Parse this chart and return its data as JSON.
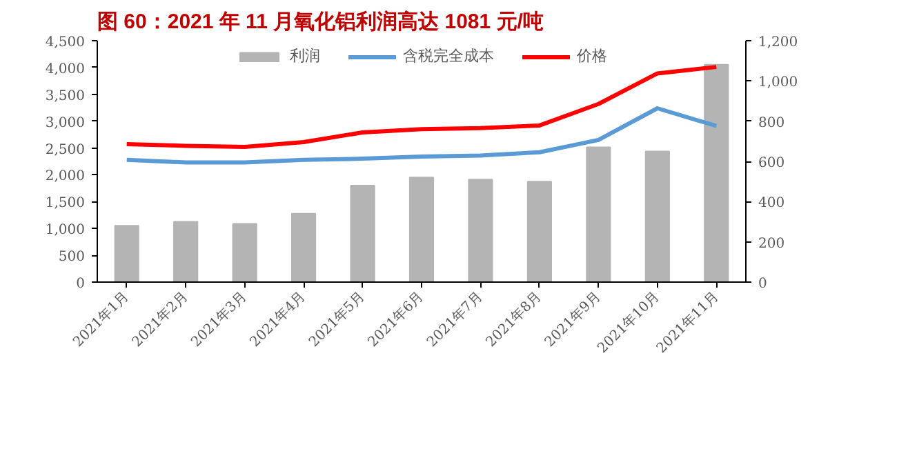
{
  "chart_data": {
    "type": "bar",
    "title": "图 60：2021 年 11 月氧化铝利润高达 1081 元/吨",
    "categories": [
      "2021年1月",
      "2021年2月",
      "2021年3月",
      "2021年4月",
      "2021年5月",
      "2021年6月",
      "2021年7月",
      "2021年8月",
      "2021年9月",
      "2021年10月",
      "2021年11月"
    ],
    "series": [
      {
        "name": "利润",
        "axis": "y2",
        "color": "#b4b4b4",
        "values": [
          280,
          300,
          290,
          340,
          480,
          520,
          510,
          500,
          670,
          650,
          1081
        ]
      },
      {
        "name": "含税完全成本",
        "type": "line",
        "color": "#5b9bd5",
        "values": [
          2280,
          2230,
          2230,
          2280,
          2300,
          2340,
          2360,
          2420,
          2650,
          3240,
          2910
        ]
      },
      {
        "name": "价格",
        "type": "line",
        "color": "#ff0000",
        "values": [
          2570,
          2540,
          2520,
          2610,
          2790,
          2850,
          2870,
          2920,
          3320,
          3890,
          4010
        ]
      }
    ],
    "ylim": [
      0,
      4500
    ],
    "yticks": [
      0,
      500,
      {
        "value": 1000,
        "label": "1,000"
      },
      {
        "value": 1500,
        "label": "1,500"
      },
      {
        "value": 2000,
        "label": "2,000"
      },
      {
        "value": 2500,
        "label": "2,500"
      },
      {
        "value": 3000,
        "label": "3,000"
      },
      {
        "value": 3500,
        "label": "3,500"
      },
      {
        "value": 4000,
        "label": "4,000"
      },
      {
        "value": 4500,
        "label": "4,500"
      }
    ],
    "y2lim": [
      0,
      1200
    ],
    "y2ticks": [
      0,
      200,
      400,
      600,
      800,
      {
        "value": 1000,
        "label": "1,000"
      },
      {
        "value": 1200,
        "label": "1,200"
      }
    ],
    "legend": "top",
    "grid": false,
    "marker": "none",
    "line_style": "solid"
  }
}
